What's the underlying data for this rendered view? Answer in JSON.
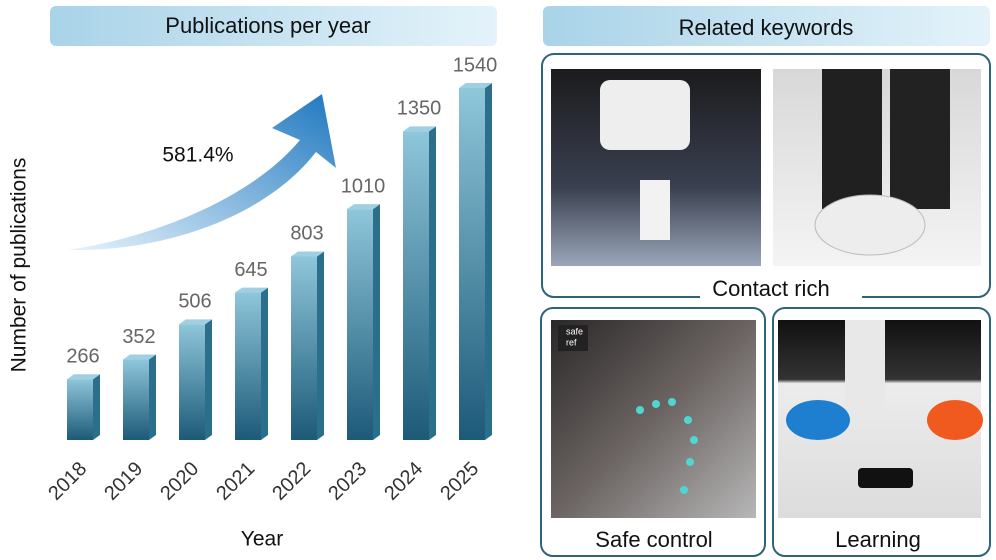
{
  "chart_data": {
    "type": "bar",
    "title": "Publications per year",
    "categories": [
      "2018",
      "2019",
      "2020",
      "2021",
      "2022",
      "2023",
      "2024",
      "2025"
    ],
    "values": [
      266,
      352,
      506,
      645,
      803,
      1010,
      1350,
      1540
    ],
    "xlabel": "Year",
    "ylabel": "Number of publications",
    "ylim": [
      0,
      1540
    ],
    "annotation": "581.4%",
    "color": "#2b6f8c"
  },
  "keywords": {
    "title": "Related keywords",
    "panels": [
      {
        "label": "Contact rich"
      },
      {
        "label": "Safe control",
        "overlay": [
          "safe",
          "ref"
        ]
      },
      {
        "label": "Learning"
      }
    ]
  }
}
